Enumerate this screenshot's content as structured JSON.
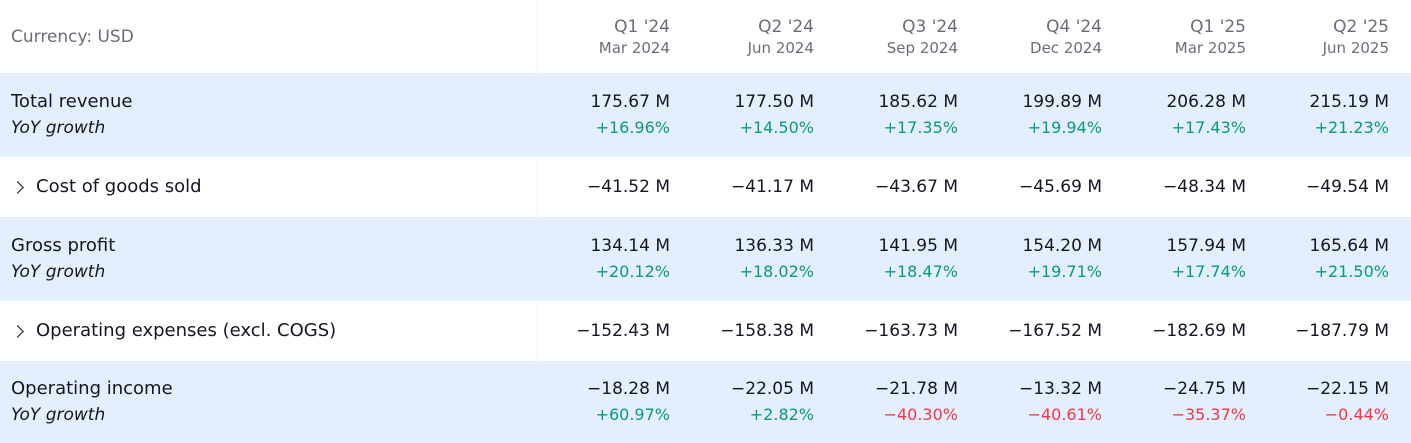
{
  "currency_label": "Currency: USD",
  "periods": [
    {
      "quarter": "Q1 '24",
      "date": "Mar 2024"
    },
    {
      "quarter": "Q2 '24",
      "date": "Jun 2024"
    },
    {
      "quarter": "Q3 '24",
      "date": "Sep 2024"
    },
    {
      "quarter": "Q4 '24",
      "date": "Dec 2024"
    },
    {
      "quarter": "Q1 '25",
      "date": "Mar 2025"
    },
    {
      "quarter": "Q2 '25",
      "date": "Jun 2025"
    }
  ],
  "rows": {
    "total_revenue": {
      "label": "Total revenue",
      "sub_label": "YoY growth",
      "values": [
        "175.67 M",
        "177.50 M",
        "185.62 M",
        "199.89 M",
        "206.28 M",
        "215.19 M"
      ],
      "growth": [
        "+16.96%",
        "+14.50%",
        "+17.35%",
        "+19.94%",
        "+17.43%",
        "+21.23%"
      ]
    },
    "cogs": {
      "label": "Cost of goods sold",
      "values": [
        "−41.52 M",
        "−41.17 M",
        "−43.67 M",
        "−45.69 M",
        "−48.34 M",
        "−49.54 M"
      ]
    },
    "gross_profit": {
      "label": "Gross profit",
      "sub_label": "YoY growth",
      "values": [
        "134.14 M",
        "136.33 M",
        "141.95 M",
        "154.20 M",
        "157.94 M",
        "165.64 M"
      ],
      "growth": [
        "+20.12%",
        "+18.02%",
        "+18.47%",
        "+19.71%",
        "+17.74%",
        "+21.50%"
      ]
    },
    "opex": {
      "label": "Operating expenses (excl. COGS)",
      "values": [
        "−152.43 M",
        "−158.38 M",
        "−163.73 M",
        "−167.52 M",
        "−182.69 M",
        "−187.79 M"
      ]
    },
    "operating_income": {
      "label": "Operating income",
      "sub_label": "YoY growth",
      "values": [
        "−18.28 M",
        "−22.05 M",
        "−21.78 M",
        "−13.32 M",
        "−24.75 M",
        "−22.15 M"
      ],
      "growth": [
        "+60.97%",
        "+2.82%",
        "−40.30%",
        "−40.61%",
        "−35.37%",
        "−0.44%"
      ]
    }
  },
  "colors": {
    "positive": "#089981",
    "negative": "#f23645",
    "highlight_row": "#e3effd",
    "muted_text": "#6a6d78"
  },
  "icons": {
    "expand": "chevron-right-icon"
  }
}
